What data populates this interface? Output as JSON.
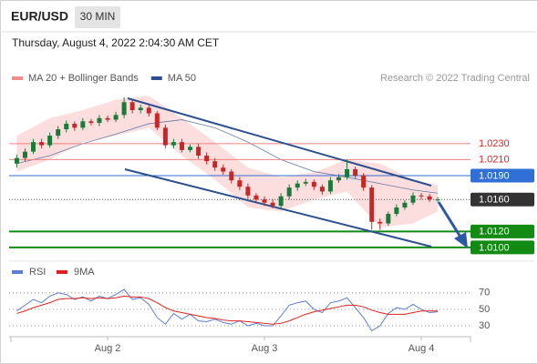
{
  "header": {
    "symbol": "EUR/USD",
    "interval": "30 MIN",
    "datetime": "Thursday, August 4, 2022 2:04:30 AM CET"
  },
  "chart_data": [
    {
      "type": "candlestick",
      "legend": [
        {
          "name": "MA 20 + Bollinger Bands",
          "color": "#f28b8b"
        },
        {
          "name": "MA 50",
          "color": "#2c4f8f"
        }
      ],
      "credit": "Research © 2022 Trading Central",
      "up_color": "#1b7a3a",
      "down_color": "#c62828",
      "open": [
        1.0205,
        1.0212,
        1.022,
        1.0232,
        1.0228,
        1.024,
        1.0248,
        1.0255,
        1.025,
        1.0258,
        1.0256,
        1.0262,
        1.026,
        1.0266,
        1.0282,
        1.0272,
        1.0275,
        1.0268,
        1.025,
        1.0228,
        1.0232,
        1.0222,
        1.0226,
        1.0215,
        1.0208,
        1.02,
        1.0195,
        1.0184,
        1.0176,
        1.0165,
        1.016,
        1.0156,
        1.0152,
        1.0164,
        1.0175,
        1.018,
        1.0182,
        1.0176,
        1.017,
        1.0184,
        1.0188,
        1.0198,
        1.019,
        1.0175,
        1.0132,
        1.013,
        1.0142,
        1.015,
        1.0156,
        1.0165,
        1.0164,
        1.016
      ],
      "high": [
        1.0216,
        1.0224,
        1.0236,
        1.0236,
        1.0244,
        1.0252,
        1.0259,
        1.0258,
        1.0262,
        1.0261,
        1.0266,
        1.0265,
        1.027,
        1.0288,
        1.0285,
        1.0279,
        1.0278,
        1.0271,
        1.0254,
        1.0236,
        1.0236,
        1.0229,
        1.023,
        1.0219,
        1.0212,
        1.0204,
        1.0198,
        1.0188,
        1.018,
        1.0168,
        1.0164,
        1.016,
        1.0168,
        1.0179,
        1.0184,
        1.0186,
        1.0185,
        1.0179,
        1.0188,
        1.0192,
        1.021,
        1.0201,
        1.0193,
        1.0178,
        1.0136,
        1.0145,
        1.0154,
        1.0159,
        1.0169,
        1.0168,
        1.0167,
        1.0163
      ],
      "low": [
        1.02,
        1.0208,
        1.0217,
        1.0224,
        1.0225,
        1.0236,
        1.0244,
        1.0246,
        1.0247,
        1.0253,
        1.0252,
        1.0257,
        1.0257,
        1.0262,
        1.0268,
        1.0268,
        1.0264,
        1.0247,
        1.0224,
        1.0224,
        1.0219,
        1.0219,
        1.0211,
        1.0204,
        1.0196,
        1.0191,
        1.018,
        1.0172,
        1.0161,
        1.0156,
        1.0152,
        1.0149,
        1.0149,
        1.016,
        1.0171,
        1.0177,
        1.0172,
        1.0166,
        1.0167,
        1.0181,
        1.0185,
        1.0186,
        1.0171,
        1.0122,
        1.0122,
        1.0127,
        1.0139,
        1.0147,
        1.0153,
        1.016,
        1.0157,
        1.0157
      ],
      "close": [
        1.0212,
        1.022,
        1.0232,
        1.0228,
        1.024,
        1.0248,
        1.0255,
        1.025,
        1.0258,
        1.0256,
        1.0262,
        1.026,
        1.0266,
        1.0282,
        1.0272,
        1.0275,
        1.0268,
        1.025,
        1.0228,
        1.0232,
        1.0222,
        1.0226,
        1.0215,
        1.0208,
        1.02,
        1.0195,
        1.0184,
        1.0176,
        1.0165,
        1.016,
        1.0156,
        1.0152,
        1.0164,
        1.0175,
        1.018,
        1.0182,
        1.0176,
        1.017,
        1.0184,
        1.0188,
        1.0198,
        1.019,
        1.0175,
        1.0132,
        1.013,
        1.0142,
        1.015,
        1.0156,
        1.0165,
        1.0164,
        1.016,
        1.016
      ],
      "band_x": [
        0,
        4,
        8,
        12,
        16,
        20,
        24,
        28,
        32,
        36,
        40,
        44,
        48,
        51
      ],
      "band_upper": [
        1.024,
        1.0262,
        1.0272,
        1.0285,
        1.029,
        1.0262,
        1.0232,
        1.02,
        1.0188,
        1.0194,
        1.021,
        1.0205,
        1.0185,
        1.0178
      ],
      "band_lower": [
        1.0195,
        1.021,
        1.0232,
        1.024,
        1.025,
        1.0215,
        1.0185,
        1.015,
        1.0145,
        1.016,
        1.017,
        1.0125,
        1.013,
        1.0145
      ],
      "ma50": [
        1.0205,
        1.0215,
        1.023,
        1.0242,
        1.0255,
        1.026,
        1.025,
        1.0232,
        1.021,
        1.0195,
        1.0188,
        1.018,
        1.0172,
        1.0168
      ],
      "ylim": [
        1.0085,
        1.0296
      ],
      "levels": [
        {
          "value": 1.023,
          "label": "1.0230",
          "color": "#f08080",
          "style": "text"
        },
        {
          "value": 1.021,
          "label": "1.0210",
          "color": "#f08080",
          "style": "text"
        },
        {
          "value": 1.019,
          "label": "1.0190",
          "color": "#2f6fd6",
          "style": "box"
        },
        {
          "value": 1.016,
          "label": "1.0160",
          "color": "#333333",
          "style": "box",
          "dotted": true
        },
        {
          "value": 1.012,
          "label": "1.0120",
          "color": "#138a13",
          "style": "box"
        },
        {
          "value": 1.01,
          "label": "1.0100",
          "color": "#138a13",
          "style": "box"
        }
      ]
    },
    {
      "type": "line",
      "series": [
        {
          "name": "RSI",
          "color": "#5b7fd6",
          "values": [
            48,
            55,
            62,
            58,
            66,
            70,
            68,
            62,
            65,
            60,
            66,
            63,
            68,
            74,
            62,
            64,
            56,
            40,
            32,
            45,
            38,
            44,
            36,
            35,
            38,
            34,
            32,
            36,
            30,
            33,
            30,
            30,
            42,
            55,
            58,
            60,
            50,
            46,
            58,
            60,
            64,
            52,
            40,
            24,
            30,
            45,
            52,
            50,
            56,
            50,
            46,
            47
          ]
        },
        {
          "name": "9MA",
          "color": "#e02020",
          "values": [
            45,
            48,
            52,
            55,
            58,
            62,
            63,
            63,
            64,
            63,
            64,
            63,
            64,
            66,
            65,
            65,
            63,
            58,
            52,
            48,
            46,
            44,
            42,
            40,
            39,
            37,
            36,
            36,
            35,
            34,
            33,
            32,
            33,
            36,
            40,
            44,
            47,
            49,
            51,
            53,
            55,
            55,
            53,
            49,
            46,
            44,
            44,
            44,
            46,
            48,
            48,
            48
          ]
        }
      ],
      "ylim": [
        19,
        83
      ],
      "yticks": [
        70,
        50,
        30
      ],
      "xticks": [
        {
          "value": 11,
          "label": "Aug 2"
        },
        {
          "value": 30,
          "label": "Aug 3"
        },
        {
          "value": 49,
          "label": "Aug 4"
        }
      ]
    }
  ]
}
